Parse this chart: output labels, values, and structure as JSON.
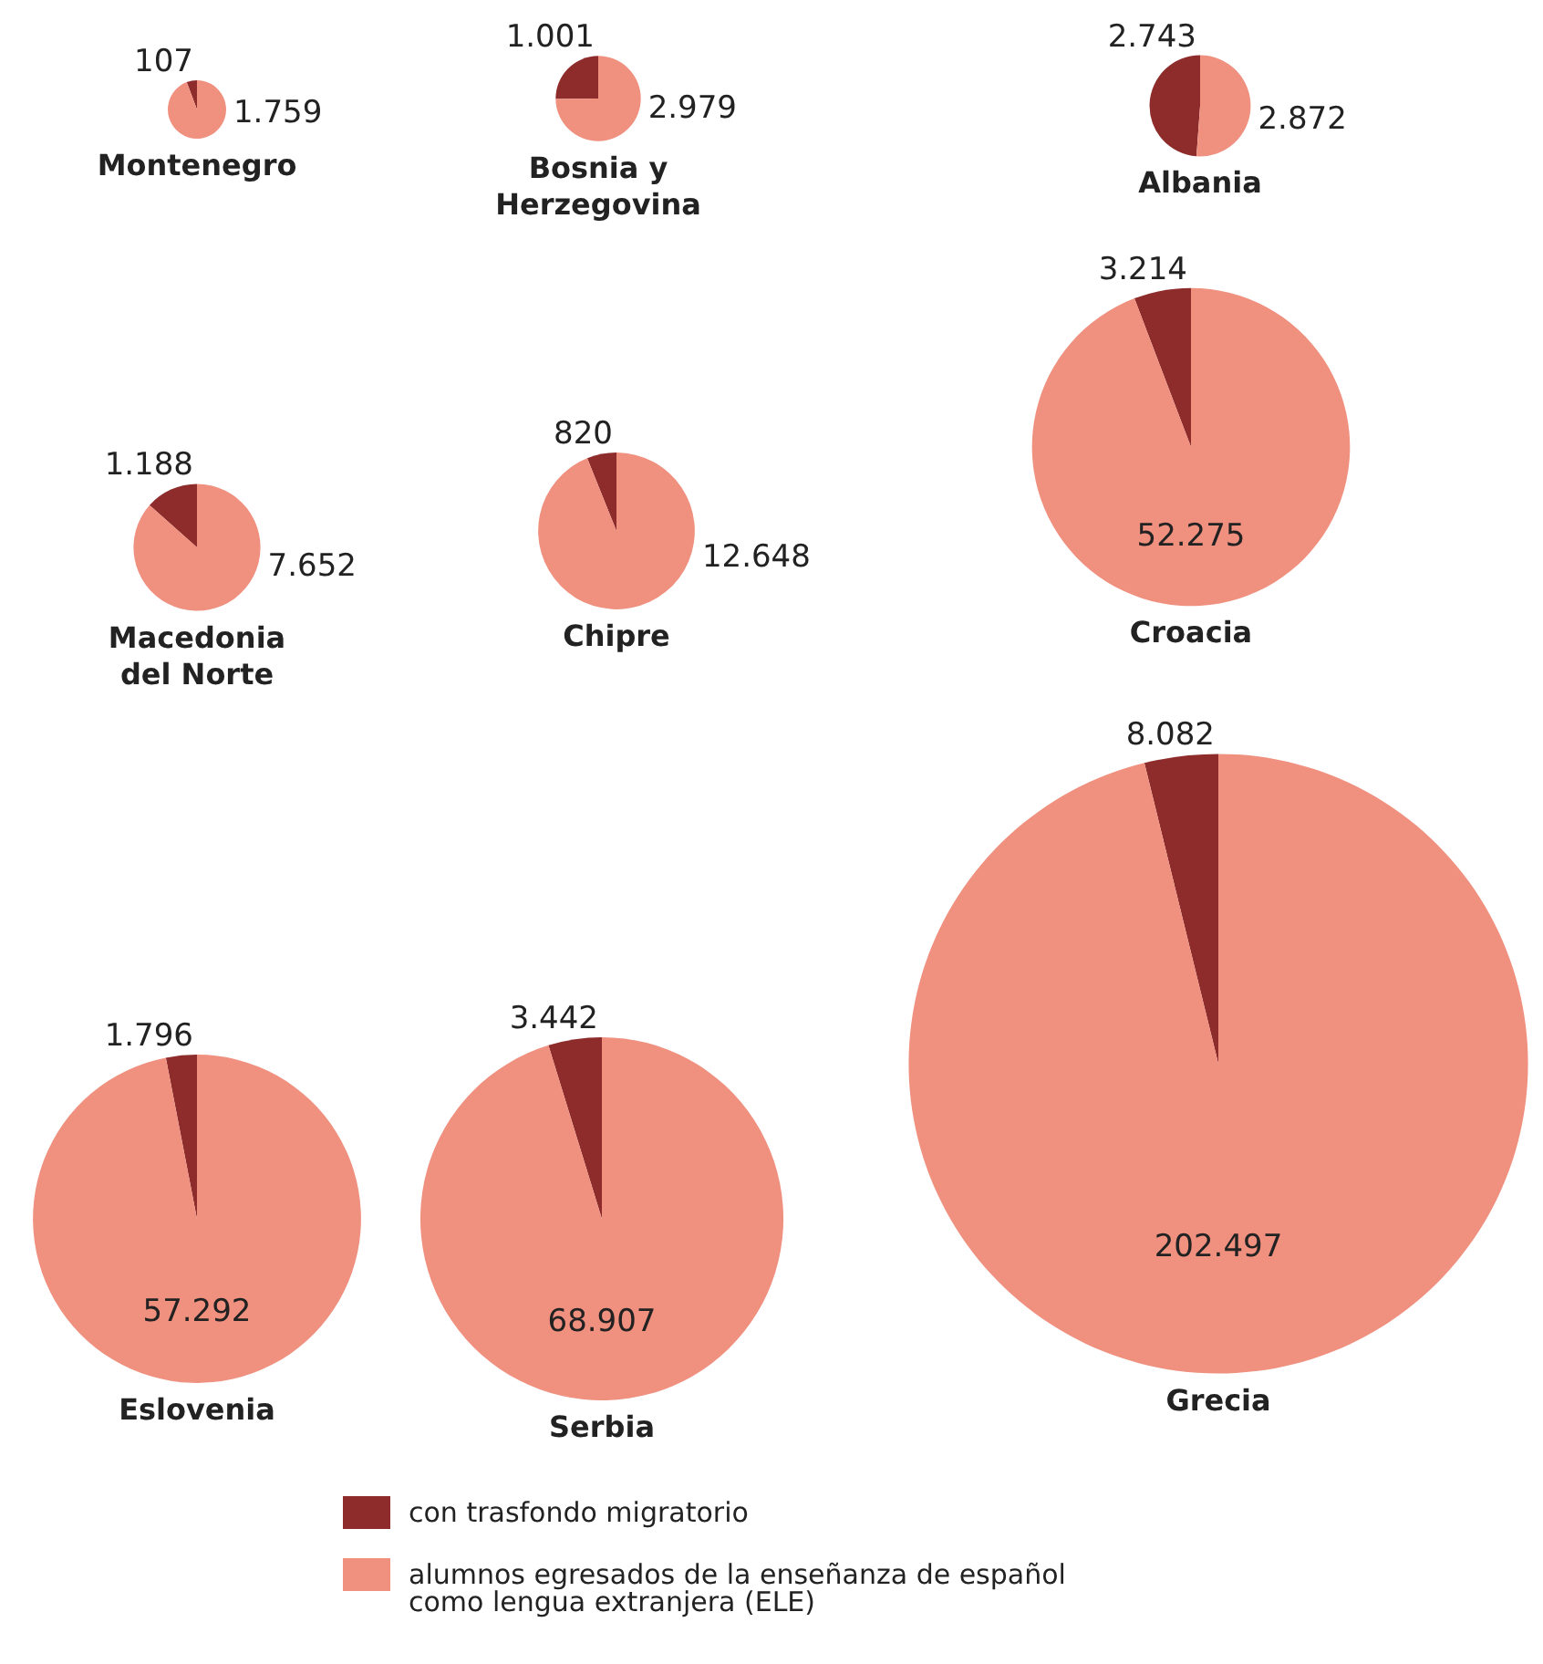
{
  "chart_data": [
    {
      "type": "pie",
      "title": "Montenegro",
      "categories": [
        "con trasfondo migratorio",
        "alumnos egresados de la enseñanza de español como lengua extranjera (ELE)"
      ],
      "values": [
        107,
        1759
      ],
      "value_labels": [
        "107",
        "1.759"
      ],
      "colors": [
        "#8e2b2b",
        "#f0907f"
      ],
      "legend": "bottom"
    },
    {
      "type": "pie",
      "title": "Bosnia y Herzegovina",
      "categories": [
        null,
        null
      ],
      "values": [
        1001,
        2979
      ],
      "value_labels": [
        "1.001",
        "2.979"
      ],
      "colors": [
        "#8e2b2b",
        "#f0907f"
      ]
    },
    {
      "type": "pie",
      "title": "Albania",
      "categories": [
        null,
        null
      ],
      "values": [
        2743,
        2872
      ],
      "value_labels": [
        "2.743",
        "2.872"
      ],
      "colors": [
        "#8e2b2b",
        "#f0907f"
      ]
    },
    {
      "type": "pie",
      "title": "Macedonia del Norte",
      "categories": [
        null,
        null
      ],
      "values": [
        1188,
        7652
      ],
      "value_labels": [
        "1.188",
        "7.652"
      ],
      "colors": [
        "#8e2b2b",
        "#f0907f"
      ]
    },
    {
      "type": "pie",
      "title": "Chipre",
      "categories": [
        null,
        null
      ],
      "values": [
        820,
        12648
      ],
      "value_labels": [
        "820",
        "12.648"
      ],
      "colors": [
        "#8e2b2b",
        "#f0907f"
      ]
    },
    {
      "type": "pie",
      "title": "Croacia",
      "categories": [
        null,
        null
      ],
      "values": [
        3214,
        52275
      ],
      "value_labels": [
        "3.214",
        "52.275"
      ],
      "colors": [
        "#8e2b2b",
        "#f0907f"
      ]
    },
    {
      "type": "pie",
      "title": "Eslovenia",
      "categories": [
        null,
        null
      ],
      "values": [
        1796,
        57292
      ],
      "value_labels": [
        "1.796",
        "57.292"
      ],
      "colors": [
        "#8e2b2b",
        "#f0907f"
      ]
    },
    {
      "type": "pie",
      "title": "Serbia",
      "categories": [
        null,
        null
      ],
      "values": [
        3442,
        68907
      ],
      "value_labels": [
        "3.442",
        "68.907"
      ],
      "colors": [
        "#8e2b2b",
        "#f0907f"
      ]
    },
    {
      "type": "pie",
      "title": "Grecia",
      "categories": [
        null,
        null
      ],
      "values": [
        8082,
        202497
      ],
      "value_labels": [
        "8.082",
        "202.497"
      ],
      "colors": [
        "#8e2b2b",
        "#f0907f"
      ]
    }
  ]
}
